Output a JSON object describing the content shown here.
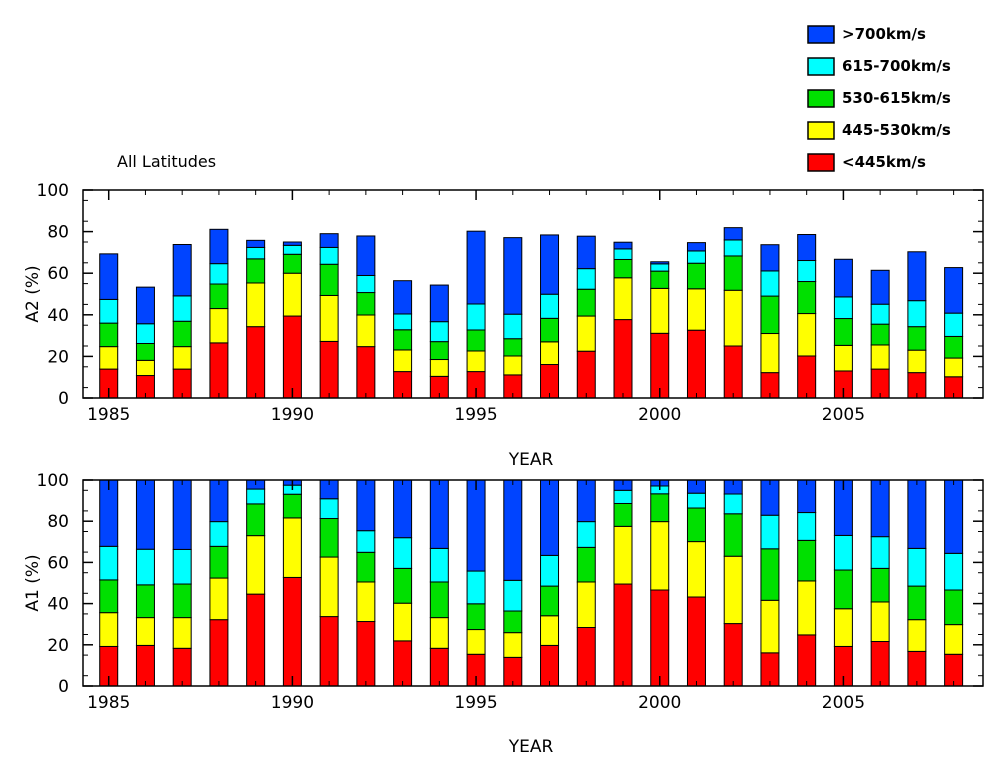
{
  "colors": {
    "v_gt_700": "#0044ff",
    "v_615_700": "#00ffff",
    "v_530_615": "#00e000",
    "v_445_530": "#ffff00",
    "v_lt_445": "#ff0000"
  },
  "chart_data": [
    {
      "id": "A2",
      "type": "bar",
      "stacked": true,
      "title": "All Latitudes",
      "xlabel": "YEAR",
      "ylabel": "A2 (%)",
      "ylim": [
        0,
        100
      ],
      "xlim": [
        1984.3,
        2008.8
      ],
      "yticks": [
        "0",
        "20",
        "40",
        "60",
        "80",
        "100"
      ],
      "xticks": [
        "1985",
        "1990",
        "1995",
        "2000",
        "2005"
      ],
      "categories": [
        1985,
        1986,
        1987,
        1988,
        1989,
        1990,
        1991,
        1992,
        1993,
        1994,
        1995,
        1996,
        1997,
        1998,
        1999,
        2000,
        2001,
        2002,
        2003,
        2004,
        2005,
        2006,
        2007,
        2008
      ],
      "series": [
        {
          "name": "<445km/s",
          "color_key": "v_lt_445",
          "values": [
            13.9,
            10.8,
            13.9,
            26.5,
            34.3,
            39.4,
            27.2,
            24.7,
            12.7,
            10.4,
            12.7,
            11.1,
            16.1,
            22.5,
            37.7,
            31.1,
            32.6,
            25.0,
            12.2,
            20.2,
            13.0,
            13.9,
            12.2,
            10.2
          ]
        },
        {
          "name": "445-530km/s",
          "color_key": "v_445_530",
          "values": [
            10.8,
            7.3,
            10.8,
            16.5,
            21.0,
            20.6,
            22.1,
            15.2,
            10.4,
            8.1,
            9.9,
            9.1,
            10.9,
            16.9,
            20.1,
            21.6,
            19.9,
            26.8,
            18.8,
            20.4,
            12.3,
            11.6,
            10.8,
            9.0
          ]
        },
        {
          "name": "530-615km/s",
          "color_key": "v_530_615",
          "values": [
            11.3,
            8.1,
            12.2,
            11.8,
            11.6,
            9.1,
            15.0,
            10.8,
            9.7,
            8.6,
            10.1,
            8.3,
            11.3,
            12.9,
            8.8,
            8.3,
            12.3,
            16.5,
            18.0,
            15.4,
            12.9,
            10.0,
            11.3,
            10.4
          ]
        },
        {
          "name": "615-700km/s",
          "color_key": "v_615_700",
          "values": [
            11.4,
            9.5,
            12.2,
            9.8,
            5.5,
            4.3,
            8.1,
            8.2,
            7.6,
            9.6,
            12.5,
            11.8,
            11.6,
            9.9,
            5.1,
            3.5,
            5.9,
            7.7,
            12.1,
            10.1,
            10.4,
            9.6,
            12.5,
            11.2
          ]
        },
        {
          "name": ">700km/s",
          "color_key": "v_gt_700",
          "values": [
            21.9,
            17.6,
            24.7,
            16.5,
            3.4,
            1.6,
            6.6,
            19.0,
            16.0,
            17.6,
            35.0,
            36.8,
            28.5,
            15.6,
            3.2,
            1.0,
            4.0,
            5.9,
            12.6,
            12.5,
            18.1,
            16.3,
            23.5,
            21.9
          ]
        }
      ]
    },
    {
      "id": "A1",
      "type": "bar",
      "stacked": true,
      "title": "",
      "xlabel": "YEAR",
      "ylabel": "A1 (%)",
      "ylim": [
        0,
        100
      ],
      "xlim": [
        1984.3,
        2008.8
      ],
      "yticks": [
        "0",
        "20",
        "40",
        "60",
        "80",
        "100"
      ],
      "xticks": [
        "1985",
        "1990",
        "1995",
        "2000",
        "2005"
      ],
      "categories": [
        1985,
        1986,
        1987,
        1988,
        1989,
        1990,
        1991,
        1992,
        1993,
        1994,
        1995,
        1996,
        1997,
        1998,
        1999,
        2000,
        2001,
        2002,
        2003,
        2004,
        2005,
        2006,
        2007,
        2008
      ],
      "series": [
        {
          "name": "<445km/s",
          "color_key": "v_lt_445",
          "values": [
            19.2,
            19.7,
            18.3,
            32.2,
            44.6,
            52.7,
            33.7,
            31.3,
            21.9,
            18.3,
            15.4,
            13.9,
            19.7,
            28.4,
            49.5,
            46.6,
            43.2,
            30.3,
            16.1,
            24.8,
            19.2,
            21.6,
            16.8,
            15.4
          ]
        },
        {
          "name": "445-530km/s",
          "color_key": "v_445_530",
          "values": [
            16.4,
            13.5,
            14.9,
            20.2,
            28.4,
            28.9,
            28.9,
            19.2,
            18.3,
            14.9,
            12.0,
            12.0,
            14.4,
            22.1,
            28.0,
            33.2,
            26.9,
            32.7,
            25.5,
            26.2,
            18.3,
            19.2,
            15.4,
            14.4
          ]
        },
        {
          "name": "530-615km/s",
          "color_key": "v_530_615",
          "values": [
            15.9,
            15.9,
            16.3,
            15.4,
            15.4,
            11.5,
            18.7,
            14.4,
            16.9,
            17.3,
            12.5,
            10.5,
            14.4,
            16.8,
            11.1,
            13.5,
            16.3,
            20.6,
            25.0,
            19.7,
            18.8,
            16.3,
            16.3,
            16.8
          ]
        },
        {
          "name": "615-700km/s",
          "color_key": "v_615_700",
          "values": [
            16.3,
            17.3,
            16.8,
            12.0,
            7.2,
            4.4,
            9.6,
            10.5,
            14.9,
            16.3,
            15.9,
            14.9,
            14.9,
            12.5,
            6.4,
            3.8,
            7.2,
            9.6,
            16.3,
            13.5,
            16.8,
            15.4,
            18.3,
            17.8
          ]
        },
        {
          "name": ">700km/s",
          "color_key": "v_gt_700",
          "values": [
            32.2,
            33.6,
            33.7,
            20.2,
            4.4,
            2.5,
            9.1,
            24.6,
            28.0,
            33.2,
            44.2,
            48.7,
            36.6,
            20.2,
            5.0,
            2.9,
            6.4,
            6.8,
            17.1,
            15.8,
            26.9,
            27.5,
            33.2,
            35.6
          ]
        }
      ]
    }
  ],
  "legend": {
    "items": [
      {
        "label": ">700km/s",
        "color_key": "v_gt_700"
      },
      {
        "label": "615-700km/s",
        "color_key": "v_615_700"
      },
      {
        "label": "530-615km/s",
        "color_key": "v_530_615"
      },
      {
        "label": "445-530km/s",
        "color_key": "v_445_530"
      },
      {
        "label": "<445km/s",
        "color_key": "v_lt_445"
      }
    ]
  }
}
